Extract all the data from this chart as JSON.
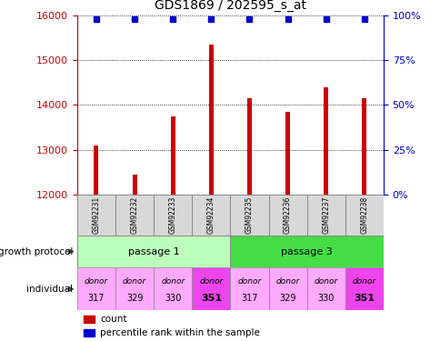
{
  "title": "GDS1869 / 202595_s_at",
  "samples": [
    "GSM92231",
    "GSM92232",
    "GSM92233",
    "GSM92234",
    "GSM92235",
    "GSM92236",
    "GSM92237",
    "GSM92238"
  ],
  "counts": [
    13100,
    12450,
    13750,
    15350,
    14150,
    13850,
    14400,
    14150
  ],
  "percentiles": [
    98,
    98,
    98,
    98,
    98,
    98,
    98,
    98
  ],
  "ylim_left": [
    12000,
    16000
  ],
  "ylim_right": [
    0,
    100
  ],
  "yticks_left": [
    12000,
    13000,
    14000,
    15000,
    16000
  ],
  "yticks_right": [
    0,
    25,
    50,
    75,
    100
  ],
  "bar_color": "#cc0000",
  "dot_color": "#0000cc",
  "passage_labels": [
    "passage 1",
    "passage 3"
  ],
  "passage_colors": [
    "#bbffbb",
    "#44dd44"
  ],
  "individual_colors_light": "#ffaaff",
  "individual_colors_dark": "#ee44ee",
  "individual_bold": [
    false,
    false,
    false,
    true,
    false,
    false,
    false,
    true
  ],
  "indiv_top": [
    "donor",
    "donor",
    "donor",
    "donor",
    "donor",
    "donor",
    "donor",
    "donor"
  ],
  "indiv_bot": [
    "317",
    "329",
    "330",
    "351",
    "317",
    "329",
    "330",
    "351"
  ],
  "legend_count_color": "#cc0000",
  "legend_dot_color": "#0000cc",
  "axis_color_left": "#cc0000",
  "axis_color_right": "#0000cc",
  "sample_bg": "#d8d8d8",
  "fig_width": 4.85,
  "fig_height": 3.75
}
